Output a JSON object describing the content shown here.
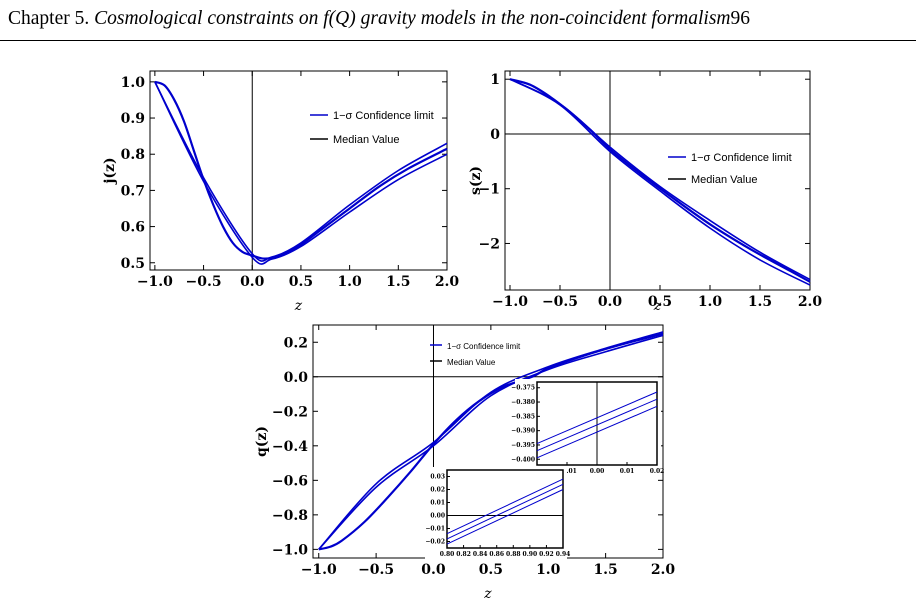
{
  "header": {
    "prefix": "Chapter 5.",
    "title": "Cosmological constraints on f(Q) gravity models in the non-coincident formalism",
    "page_number": "96"
  },
  "legend": {
    "confidence": "1−σ Confidence limit",
    "median": "Median Value"
  },
  "colors": {
    "band": "#0000cc",
    "median": "#000000"
  },
  "chart_data": [
    {
      "type": "line",
      "id": "j",
      "ylabel": "j(z)",
      "xlabel": "z",
      "xlim": [
        -1.05,
        2.0
      ],
      "ylim": [
        0.48,
        1.03
      ],
      "xticks": [
        -1.0,
        -0.5,
        0.0,
        0.5,
        1.0,
        1.5,
        2.0
      ],
      "xtick_labels": [
        "−1.0",
        "−0.5",
        "0.0",
        "0.5",
        "1.0",
        "1.5",
        "2.0"
      ],
      "yticks": [
        0.5,
        0.6,
        0.7,
        0.8,
        0.9,
        1.0
      ],
      "ytick_labels": [
        "0.5",
        "0.6",
        "0.7",
        "0.8",
        "0.9",
        "1.0"
      ],
      "hlines": [],
      "legend_position": "top-right",
      "series": [
        {
          "name": "Median Value",
          "x": [
            -1.0,
            -0.9,
            -0.8,
            -0.7,
            -0.6,
            -0.5,
            -0.4,
            -0.3,
            -0.2,
            -0.1,
            0.0,
            0.1,
            0.2,
            0.3,
            0.5,
            0.7,
            1.0,
            1.3,
            1.6,
            2.0
          ],
          "y": [
            1.0,
            0.99,
            0.95,
            0.89,
            0.81,
            0.73,
            0.66,
            0.6,
            0.555,
            0.53,
            0.52,
            0.512,
            0.513,
            0.52,
            0.55,
            0.59,
            0.65,
            0.71,
            0.76,
            0.815
          ]
        },
        {
          "name": "1−σ Confidence limit",
          "x": [
            -1.0,
            -0.5,
            0.0,
            0.2,
            0.5,
            1.0,
            1.5,
            2.0
          ],
          "y": [
            1.0,
            0.735,
            0.525,
            0.516,
            0.555,
            0.66,
            0.755,
            0.83
          ],
          "y2": [
            1.0,
            0.725,
            0.515,
            0.51,
            0.545,
            0.64,
            0.73,
            0.8
          ]
        }
      ]
    },
    {
      "type": "line",
      "id": "s",
      "ylabel": "s(z)",
      "xlabel": "z",
      "xlim": [
        -1.05,
        2.0
      ],
      "ylim": [
        -2.85,
        1.15
      ],
      "xticks": [
        -1.0,
        -0.5,
        0.0,
        0.5,
        1.0,
        1.5,
        2.0
      ],
      "xtick_labels": [
        "−1.0",
        "−0.5",
        "0.0",
        "0.5",
        "1.0",
        "1.5",
        "2.0"
      ],
      "yticks": [
        -2,
        -1,
        0,
        1
      ],
      "ytick_labels": [
        "−2",
        "−1",
        "0",
        "1"
      ],
      "hlines": [
        0
      ],
      "legend_position": "right",
      "series": [
        {
          "name": "Median Value",
          "x": [
            -1.0,
            -0.8,
            -0.6,
            -0.4,
            -0.2,
            0.0,
            0.3,
            0.6,
            1.0,
            1.4,
            1.8,
            2.0
          ],
          "y": [
            1.0,
            0.9,
            0.68,
            0.4,
            0.08,
            -0.28,
            -0.72,
            -1.13,
            -1.65,
            -2.1,
            -2.5,
            -2.7
          ]
        },
        {
          "name": "1−σ Confidence limit",
          "x": [
            -1.0,
            -0.5,
            0.0,
            0.5,
            1.0,
            1.5,
            2.0
          ],
          "y": [
            1.0,
            0.55,
            -0.24,
            -0.96,
            -1.58,
            -2.16,
            -2.66
          ],
          "y2": [
            1.0,
            0.53,
            -0.32,
            -1.04,
            -1.72,
            -2.3,
            -2.76
          ]
        }
      ]
    },
    {
      "type": "line",
      "id": "q",
      "ylabel": "q(z)",
      "xlabel": "z",
      "xlim": [
        -1.05,
        2.0
      ],
      "ylim": [
        -1.05,
        0.3
      ],
      "xticks": [
        -1.0,
        -0.5,
        0.0,
        0.5,
        1.0,
        1.5,
        2.0
      ],
      "xtick_labels": [
        "−1.0",
        "−0.5",
        "0.0",
        "0.5",
        "1.0",
        "1.5",
        "2.0"
      ],
      "yticks": [
        -1.0,
        -0.8,
        -0.6,
        -0.4,
        -0.2,
        0.0,
        0.2
      ],
      "ytick_labels": [
        "−1.0",
        "−0.8",
        "−0.6",
        "−0.4",
        "−0.2",
        "0.0",
        "0.2"
      ],
      "hlines": [
        0
      ],
      "legend_position": "top-center",
      "series": [
        {
          "name": "Median Value",
          "x": [
            -1.0,
            -0.9,
            -0.8,
            -0.6,
            -0.4,
            -0.2,
            0.0,
            0.2,
            0.4,
            0.6,
            0.86,
            1.0,
            1.3,
            1.6,
            2.0
          ],
          "y": [
            -1.0,
            -0.985,
            -0.95,
            -0.84,
            -0.7,
            -0.55,
            -0.39,
            -0.25,
            -0.14,
            -0.06,
            0.0,
            0.05,
            0.12,
            0.18,
            0.25
          ]
        },
        {
          "name": "1−σ Confidence limit",
          "x": [
            -1.0,
            -0.5,
            0.0,
            0.5,
            1.0,
            1.5,
            2.0
          ],
          "y": [
            -1.0,
            -0.62,
            -0.38,
            -0.09,
            0.058,
            0.165,
            0.26
          ],
          "y2": [
            -1.0,
            -0.64,
            -0.4,
            -0.11,
            0.042,
            0.145,
            0.24
          ]
        }
      ]
    },
    {
      "type": "line",
      "id": "q_inset_zero",
      "xlim": [
        -0.02,
        0.02
      ],
      "ylim": [
        -0.402,
        -0.373
      ],
      "xticks": [
        -0.02,
        -0.01,
        0.0,
        0.01,
        0.02
      ],
      "xtick_labels": [
        "−0.02",
        "−0.01",
        "0.00",
        "0.01",
        "0.02"
      ],
      "yticks": [
        -0.4,
        -0.395,
        -0.39,
        -0.385,
        -0.38,
        -0.375
      ],
      "ytick_labels": [
        "−0.400",
        "−0.395",
        "−0.390",
        "−0.385",
        "−0.380",
        "−0.375"
      ],
      "lines": [
        {
          "x": [
            -0.02,
            0.02
          ],
          "y": [
            -0.3945,
            -0.3765
          ]
        },
        {
          "x": [
            -0.02,
            0.02
          ],
          "y": [
            -0.397,
            -0.379
          ]
        },
        {
          "x": [
            -0.02,
            0.02
          ],
          "y": [
            -0.3995,
            -0.3815
          ]
        }
      ]
    },
    {
      "type": "line",
      "id": "q_inset_transition",
      "xlim": [
        0.8,
        0.94
      ],
      "ylim": [
        -0.025,
        0.035
      ],
      "xticks": [
        0.8,
        0.82,
        0.84,
        0.86,
        0.88,
        0.9,
        0.92,
        0.94
      ],
      "xtick_labels": [
        "0.80",
        "0.82",
        "0.84",
        "0.86",
        "0.88",
        "0.90",
        "0.92",
        "0.94"
      ],
      "yticks": [
        -0.02,
        -0.01,
        0.0,
        0.01,
        0.02,
        0.03
      ],
      "ytick_labels": [
        "−0.02",
        "−0.01",
        "0.00",
        "0.01",
        "0.02",
        "0.03"
      ],
      "lines": [
        {
          "x": [
            0.8,
            0.94
          ],
          "y": [
            -0.014,
            0.028
          ]
        },
        {
          "x": [
            0.8,
            0.94
          ],
          "y": [
            -0.018,
            0.024
          ]
        },
        {
          "x": [
            0.8,
            0.94
          ],
          "y": [
            -0.022,
            0.02
          ]
        }
      ]
    }
  ]
}
